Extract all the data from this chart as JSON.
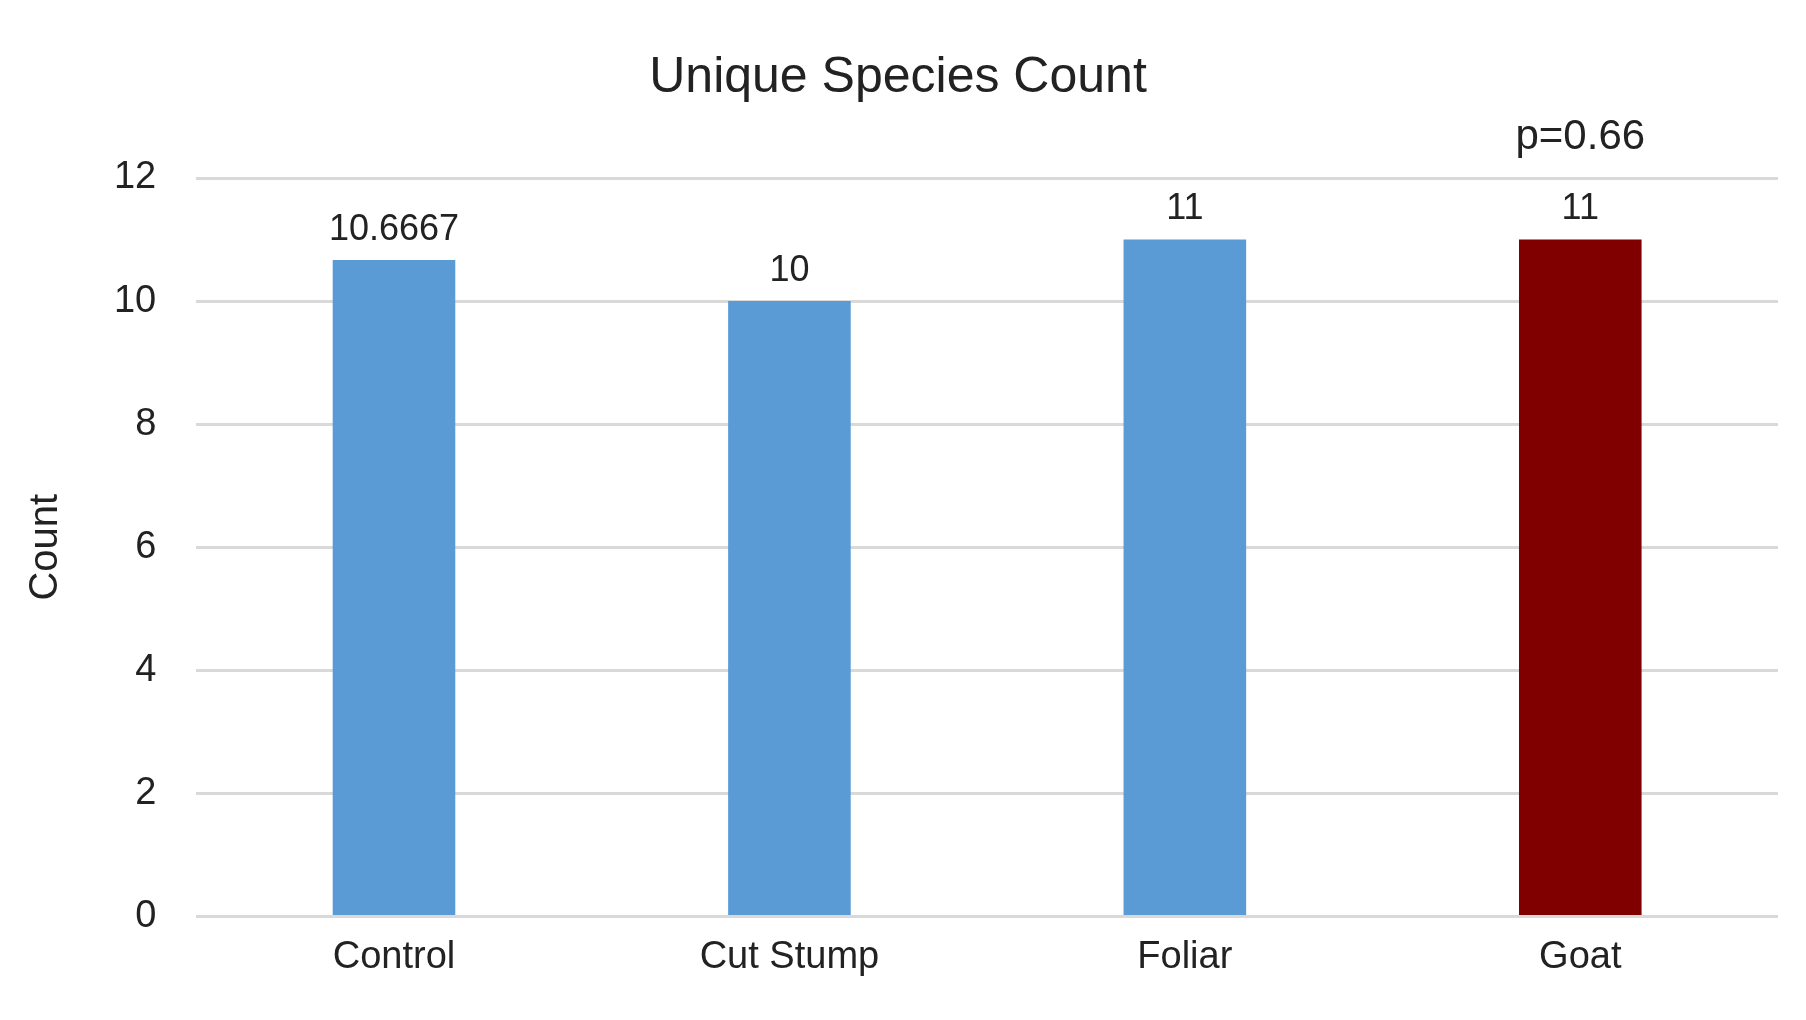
{
  "chart_data": {
    "type": "bar",
    "title": "Unique Species Count",
    "ylabel": "Count",
    "categories": [
      "Control",
      "Cut Stump",
      "Foliar",
      "Goat"
    ],
    "values": [
      10.6667,
      10,
      11,
      11
    ],
    "colors": [
      "#5b9bd5",
      "#5b9bd5",
      "#5b9bd5",
      "#800000"
    ],
    "ylim": [
      0,
      12
    ],
    "yticks": [
      0,
      2,
      4,
      6,
      8,
      10,
      12
    ],
    "grid": "y",
    "legend": false,
    "data_labels": true,
    "annotations": [
      "p=0.66"
    ]
  }
}
